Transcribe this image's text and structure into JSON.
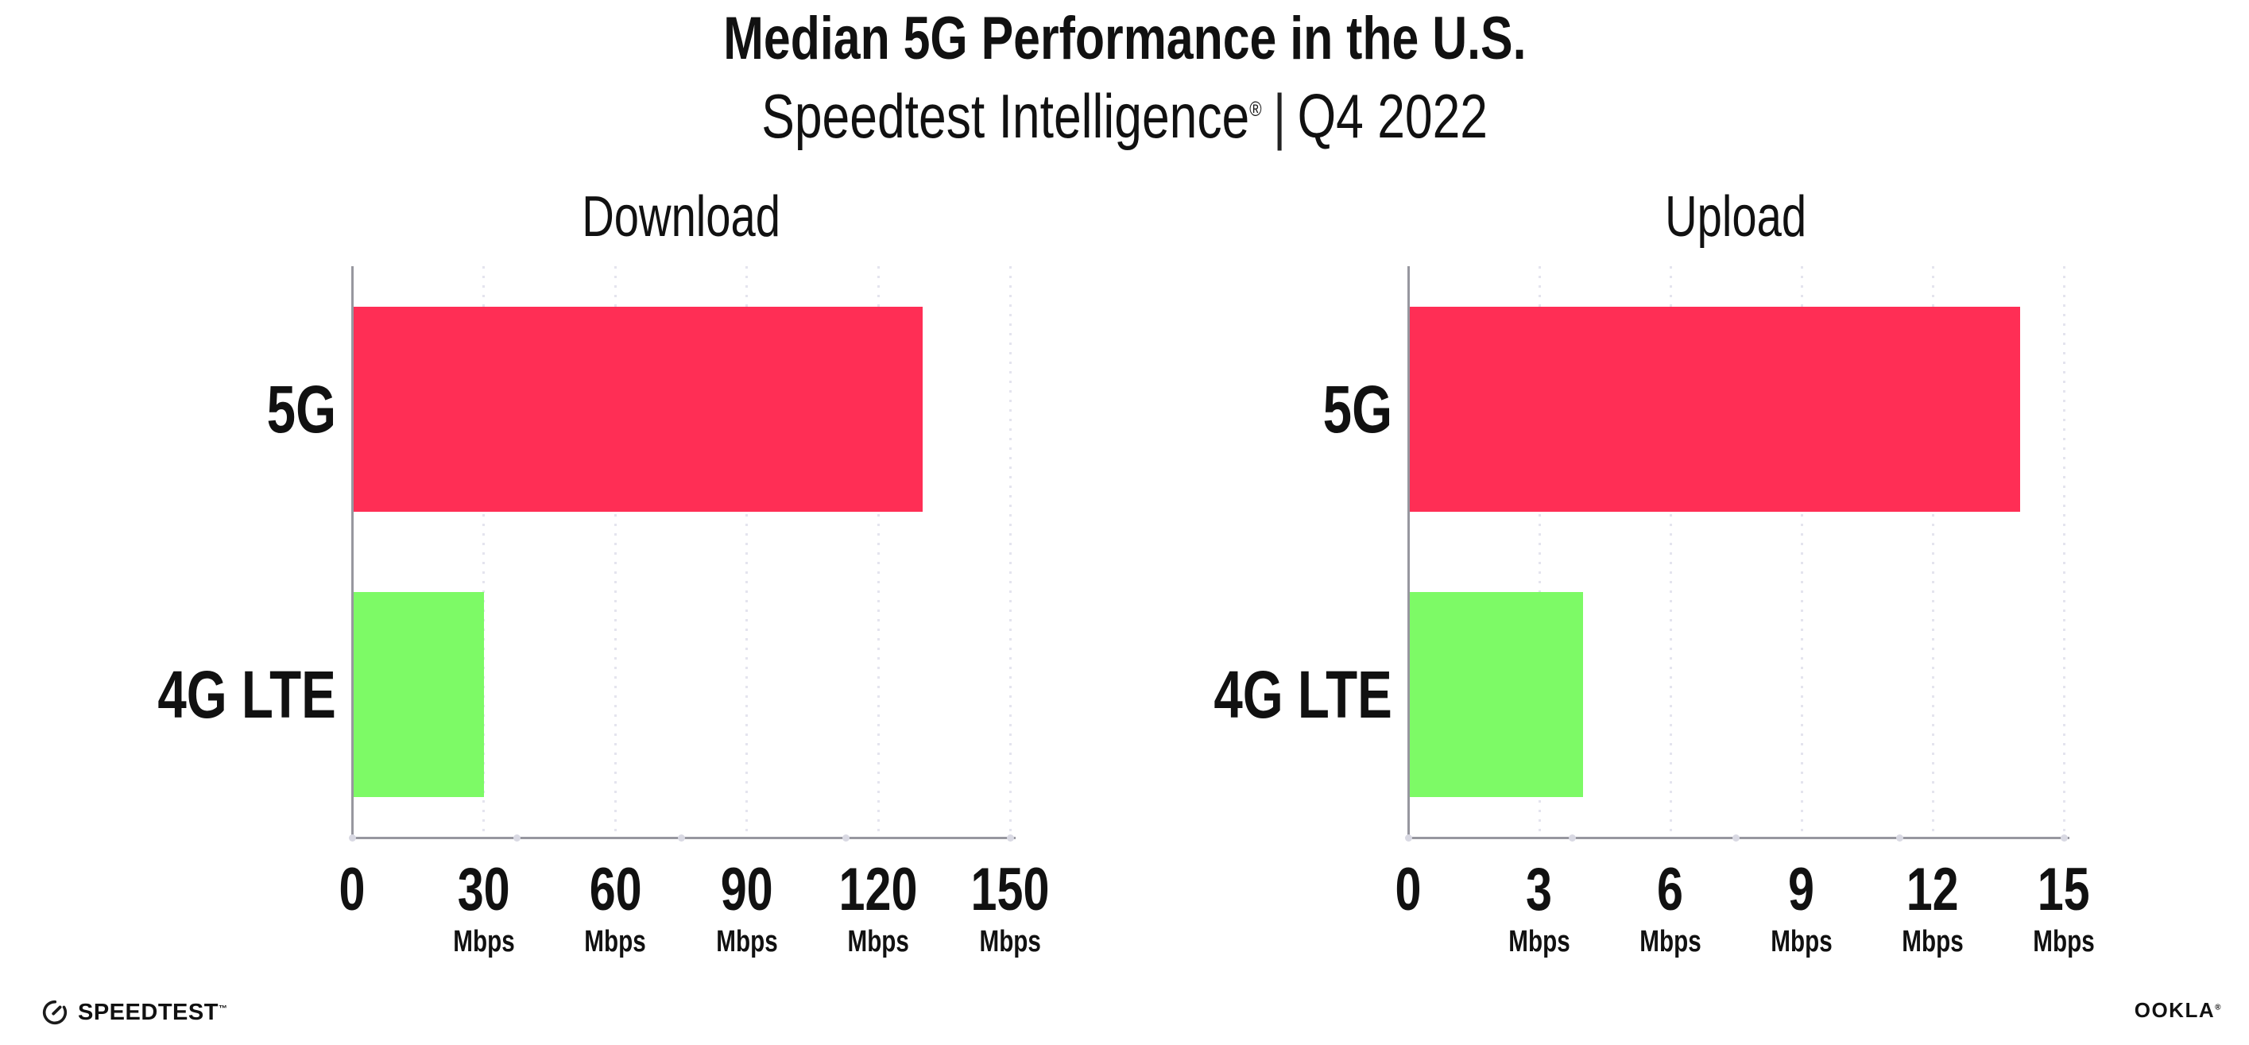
{
  "header": {
    "title": "Median 5G Performance in the U.S.",
    "subtitle": {
      "brand": "Speedtest Intelligence",
      "registered_mark": "®",
      "separator": "|",
      "period": "Q4 2022"
    }
  },
  "chart_data": [
    {
      "type": "bar",
      "orientation": "horizontal",
      "title": "Download",
      "categories": [
        "5G",
        "4G LTE"
      ],
      "values": [
        130,
        30
      ],
      "unit": "Mbps",
      "xlim": [
        0,
        150
      ],
      "xticks": [
        0,
        30,
        60,
        90,
        120,
        150
      ],
      "bar_colors": [
        "#FF2E55",
        "#7DFA66"
      ],
      "grid": "dotted-vertical",
      "legend": "none"
    },
    {
      "type": "bar",
      "orientation": "horizontal",
      "title": "Upload",
      "categories": [
        "5G",
        "4G LTE"
      ],
      "values": [
        14,
        4
      ],
      "unit": "Mbps",
      "xlim": [
        0,
        15
      ],
      "xticks": [
        0,
        3,
        6,
        9,
        12,
        15
      ],
      "bar_colors": [
        "#FF2E55",
        "#7DFA66"
      ],
      "grid": "dotted-vertical",
      "legend": "none"
    }
  ],
  "colors": {
    "bar_5g": "#FF2E55",
    "bar_4g_lte": "#7DFA66",
    "axis": "#97979F",
    "gridline": "#E4E4EE",
    "text": "#111111"
  },
  "footer": {
    "speedtest_label": "SPEEDTEST",
    "speedtest_mark": "™",
    "ookla_label": "OOKLA",
    "ookla_mark": "®"
  }
}
